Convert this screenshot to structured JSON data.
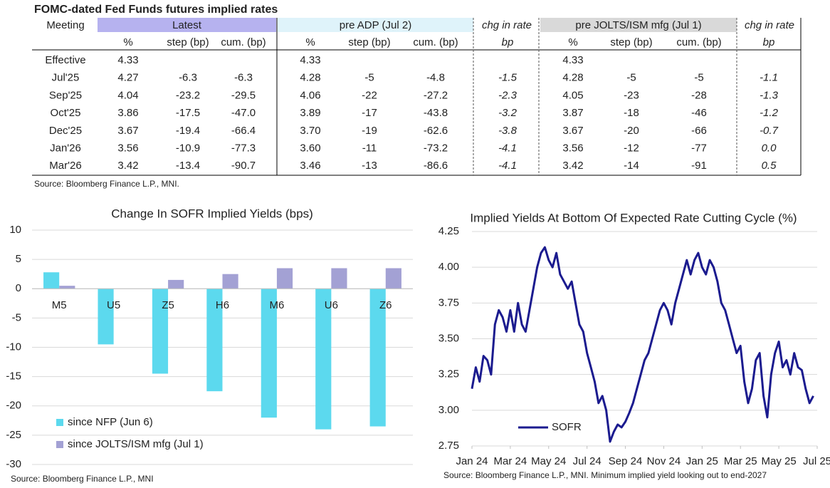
{
  "table": {
    "title": "FOMC-dated Fed Funds futures implied rates",
    "meeting": "Meeting",
    "groups": [
      "Latest",
      "pre ADP (Jul 2)",
      "chg in rate",
      "pre JOLTS/ISM mfg (Jul 1)",
      "chg in rate"
    ],
    "subheaders": [
      "%",
      "step (bp)",
      "cum. (bp)",
      "%",
      "step (bp)",
      "cum. (bp)",
      "bp",
      "%",
      "step (bp)",
      "cum. (bp)",
      "bp"
    ],
    "rows": [
      [
        "Effective",
        "4.33",
        null,
        null,
        "4.33",
        null,
        null,
        null,
        "4.33",
        null,
        null,
        null
      ],
      [
        "Jul'25",
        "4.27",
        "-6.3",
        "-6.3",
        "4.28",
        "-5",
        "-4.8",
        "-1.5",
        "4.28",
        "-5",
        "-5",
        "-1.1"
      ],
      [
        "Sep'25",
        "4.04",
        "-23.2",
        "-29.5",
        "4.06",
        "-22",
        "-27.2",
        "-2.3",
        "4.05",
        "-23",
        "-28",
        "-1.3"
      ],
      [
        "Oct'25",
        "3.86",
        "-17.5",
        "-47.0",
        "3.89",
        "-17",
        "-43.8",
        "-3.2",
        "3.87",
        "-18",
        "-46",
        "-1.2"
      ],
      [
        "Dec'25",
        "3.67",
        "-19.4",
        "-66.4",
        "3.70",
        "-19",
        "-62.6",
        "-3.8",
        "3.67",
        "-20",
        "-66",
        "-0.7"
      ],
      [
        "Jan'26",
        "3.56",
        "-10.9",
        "-77.3",
        "3.60",
        "-11",
        "-73.2",
        "-4.1",
        "3.56",
        "-12",
        "-77",
        "0.0"
      ],
      [
        "Mar'26",
        "3.42",
        "-13.4",
        "-90.7",
        "3.46",
        "-13",
        "-86.6",
        "-4.1",
        "3.42",
        "-14",
        "-91",
        "0.5"
      ]
    ],
    "source": "Source: Bloomberg Finance L.P., MNI."
  },
  "chart_data": [
    {
      "type": "bar",
      "title": "Change In SOFR Implied Yields (bps)",
      "categories": [
        "M5",
        "U5",
        "Z5",
        "H6",
        "M6",
        "U6",
        "Z6"
      ],
      "series": [
        {
          "name": "since NFP (Jun 6)",
          "color": "#5cd9ee",
          "values": [
            2.8,
            -9.5,
            -14.5,
            -17.5,
            -22,
            -24,
            -23.5
          ]
        },
        {
          "name": "since JOLTS/ISM mfg (Jul 1)",
          "color": "#a3a1d4",
          "values": [
            0.5,
            0,
            1.5,
            2.5,
            3.5,
            3.5,
            3.5
          ]
        }
      ],
      "ylim": [
        -30,
        10
      ],
      "yticks": [
        -30,
        -25,
        -20,
        -15,
        -10,
        -5,
        0,
        5,
        10
      ],
      "grid": true,
      "source": "Source: Bloomberg Finance L.P., MNI"
    },
    {
      "type": "line",
      "title": "Implied Yields At Bottom Of Expected Rate Cutting Cycle (%)",
      "x": [
        0,
        0.2,
        0.4,
        0.6,
        0.8,
        1,
        1.2,
        1.4,
        1.6,
        1.8,
        2,
        2.2,
        2.4,
        2.6,
        2.8,
        3,
        3.2,
        3.4,
        3.6,
        3.8,
        4,
        4.2,
        4.4,
        4.6,
        4.8,
        5,
        5.2,
        5.4,
        5.6,
        5.8,
        6,
        6.2,
        6.4,
        6.6,
        6.8,
        7,
        7.2,
        7.4,
        7.6,
        7.8,
        8,
        8.2,
        8.4,
        8.6,
        8.8,
        9,
        9.2,
        9.4,
        9.6,
        9.8,
        10,
        10.2,
        10.4,
        10.6,
        10.8,
        11,
        11.2,
        11.4,
        11.6,
        11.8,
        12,
        12.2,
        12.4,
        12.6,
        12.8,
        13,
        13.2,
        13.4,
        13.6,
        13.8,
        14,
        14.2,
        14.4,
        14.6,
        14.8,
        15,
        15.2,
        15.4,
        15.6,
        15.8,
        16,
        16.2,
        16.4,
        16.6,
        16.8,
        17,
        17.2,
        17.4,
        17.6,
        17.8
      ],
      "series": [
        {
          "name": "SOFR",
          "color": "#1b1b8f",
          "values": [
            3.15,
            3.3,
            3.2,
            3.38,
            3.35,
            3.25,
            3.6,
            3.7,
            3.65,
            3.55,
            3.7,
            3.55,
            3.75,
            3.6,
            3.55,
            3.7,
            3.85,
            4.0,
            4.1,
            4.14,
            4.05,
            4.0,
            4.1,
            3.95,
            3.9,
            3.85,
            3.9,
            3.75,
            3.6,
            3.55,
            3.4,
            3.3,
            3.2,
            3.05,
            3.1,
            3.0,
            2.78,
            2.85,
            2.9,
            2.88,
            2.92,
            2.98,
            3.05,
            3.15,
            3.25,
            3.35,
            3.4,
            3.5,
            3.6,
            3.7,
            3.75,
            3.7,
            3.6,
            3.75,
            3.85,
            3.95,
            4.05,
            3.95,
            4.05,
            4.1,
            4.0,
            3.95,
            4.05,
            4.0,
            3.9,
            3.75,
            3.7,
            3.6,
            3.5,
            3.4,
            3.45,
            3.2,
            3.05,
            3.15,
            3.35,
            3.4,
            3.1,
            2.95,
            3.25,
            3.4,
            3.48,
            3.3,
            3.35,
            3.25,
            3.4,
            3.3,
            3.28,
            3.15,
            3.05,
            3.1
          ]
        }
      ],
      "xlim": [
        0,
        18
      ],
      "xticks": [
        {
          "value": 0,
          "label": "Jan 24"
        },
        {
          "value": 2,
          "label": "Mar 24"
        },
        {
          "value": 4,
          "label": "May 24"
        },
        {
          "value": 6,
          "label": "Jul 24"
        },
        {
          "value": 8,
          "label": "Sep 24"
        },
        {
          "value": 10,
          "label": "Nov 24"
        },
        {
          "value": 12,
          "label": "Jan 25"
        },
        {
          "value": 14,
          "label": "Mar 25"
        },
        {
          "value": 16,
          "label": "May 25"
        },
        {
          "value": 18,
          "label": "Jul 25"
        }
      ],
      "ylim": [
        2.75,
        4.25
      ],
      "yticks": [
        2.75,
        {
          "value": 3,
          "label": "3.00"
        },
        3.25,
        {
          "value": 3.5,
          "label": "3.50"
        },
        3.75,
        {
          "value": 4,
          "label": "4.00"
        },
        4.25
      ],
      "grid": true,
      "source": "Source: Bloomberg Finance L.P., MNI. Minimum implied yield looking out to end-2027"
    }
  ]
}
